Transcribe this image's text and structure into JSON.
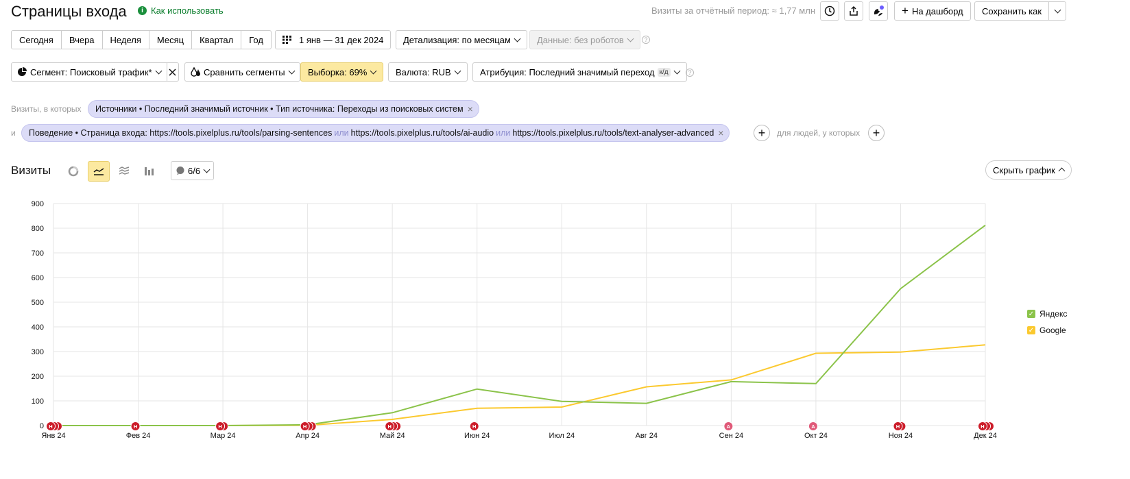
{
  "header": {
    "title": "Страницы входа",
    "how_to": "Как использовать",
    "visits_period": "Визиты за отчётный период: ≈ 1,77 млн",
    "to_dashboard": "На дашборд",
    "save_as": "Сохранить как"
  },
  "period": {
    "options": [
      "Сегодня",
      "Вчера",
      "Неделя",
      "Месяц",
      "Квартал",
      "Год"
    ],
    "date_range": "1 янв — 31 дек 2024",
    "detail": "Детализация: по месяцам",
    "data_filter": "Данные: без роботов"
  },
  "segment": {
    "segment_label": "Сегмент: Поисковый трафик*",
    "compare_label": "Сравнить сегменты",
    "sample_label": "Выборка: 69%",
    "currency_label": "Валюта: RUB",
    "attribution_label": "Атрибуция: Последний значимый переход",
    "attribution_badge": "к/д"
  },
  "filters": {
    "visits_where": "Визиты, в которых",
    "and": "и",
    "for_people": "для людей, у которых",
    "chip1": "Источники • Последний значимый источник • Тип источника: Переходы из поисковых систем",
    "chip2_prefix": "Поведение • Страница входа: https://tools.pixelplus.ru/tools/parsing-sentences",
    "chip2_or": "или",
    "chip2_mid": "https://tools.pixelplus.ru/tools/ai-audio",
    "chip2_suffix": "https://tools.pixelplus.ru/tools/text-analyser-advanced"
  },
  "chart_header": {
    "title": "Визиты",
    "annotations": "6/6",
    "hide_chart": "Скрыть график"
  },
  "colors": {
    "yandex": "#8bc34a",
    "google": "#fbc92f",
    "marker_red": "#cc1d2a",
    "marker_pink": "#e05a79"
  },
  "chart_data": {
    "type": "line",
    "x": [
      "Янв 24",
      "Фев 24",
      "Мар 24",
      "Апр 24",
      "Май 24",
      "Июн 24",
      "Июл 24",
      "Авг 24",
      "Сен 24",
      "Окт 24",
      "Ноя 24",
      "Дек 24"
    ],
    "ylim": [
      0,
      900
    ],
    "yticks": [
      0,
      100,
      200,
      300,
      400,
      500,
      600,
      700,
      800,
      900
    ],
    "grid": true,
    "legend_position": "right",
    "series": [
      {
        "name": "Яндекс",
        "color": "#8bc34a",
        "values": [
          0,
          0,
          0,
          3,
          52,
          148,
          98,
          90,
          178,
          170,
          555,
          812
        ]
      },
      {
        "name": "Google",
        "color": "#fbc92f",
        "values": [
          0,
          0,
          0,
          1,
          25,
          70,
          75,
          157,
          185,
          293,
          298,
          327
        ]
      }
    ],
    "annotations": [
      {
        "month": 0,
        "labels": [
          "Н",
          "",
          ""
        ]
      },
      {
        "month": 1,
        "labels": [
          "Н"
        ]
      },
      {
        "month": 2,
        "labels": [
          "Н",
          ""
        ]
      },
      {
        "month": 3,
        "labels": [
          "Н",
          "",
          ""
        ]
      },
      {
        "month": 4,
        "labels": [
          "Н",
          "",
          ""
        ]
      },
      {
        "month": 5,
        "labels": [
          "Н"
        ]
      },
      {
        "month": 8,
        "labels": [
          "А"
        ],
        "pink": true
      },
      {
        "month": 9,
        "labels": [
          "А"
        ],
        "pink": true
      },
      {
        "month": 10,
        "labels": [
          "Н",
          ""
        ]
      },
      {
        "month": 11,
        "labels": [
          "Н",
          "",
          ""
        ]
      }
    ]
  }
}
